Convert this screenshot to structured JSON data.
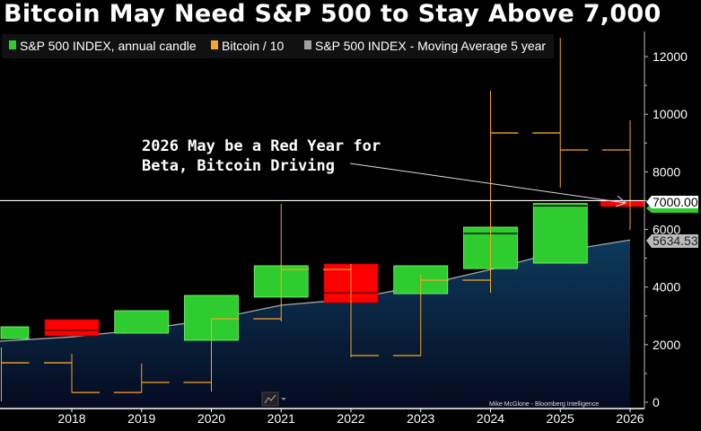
{
  "title": "Bitcoin May Need S&P 500 to Stay Above 7,000",
  "chart_data": {
    "type": "candlestick",
    "title": "Bitcoin May Need S&P 500 to Stay Above 7,000",
    "legend": {
      "placement": "top-left",
      "entries": [
        {
          "label": "S&P 500 INDEX, annual candle",
          "color": "#2ecc2e"
        },
        {
          "label": "Bitcoin / 10",
          "color": "#f5a623"
        },
        {
          "label": "S&P 500 INDEX - Moving Average 5 year",
          "color": "#a0a0a0"
        }
      ]
    },
    "x_tick_labels": [
      "2018",
      "2019",
      "2020",
      "2021",
      "2022",
      "2023",
      "2024",
      "2025",
      "2026"
    ],
    "y_axis": {
      "position": "right",
      "range": [
        0,
        12500
      ],
      "tick_labels": [
        "0",
        "2000",
        "4000",
        "6000",
        "8000",
        "10000",
        "12000"
      ]
    },
    "sp500_candles": [
      {
        "year": 2017,
        "open": 2210,
        "close": 2620
      },
      {
        "year": 2018,
        "open": 2870,
        "close": 2310,
        "marker": 2500
      },
      {
        "year": 2019,
        "open": 2400,
        "close": 3180
      },
      {
        "year": 2020,
        "open": 2150,
        "close": 3710
      },
      {
        "year": 2021,
        "open": 3650,
        "close": 4740
      },
      {
        "year": 2022,
        "open": 4800,
        "close": 3460,
        "marker": 3800
      },
      {
        "year": 2023,
        "open": 3770,
        "close": 4740
      },
      {
        "year": 2024,
        "open": 4640,
        "close": 6080,
        "marker": 5860
      },
      {
        "year": 2025,
        "open": 4830,
        "close": 6900,
        "marker": 6820
      },
      {
        "year": 2026,
        "open": 7000,
        "close": 6800
      }
    ],
    "bitcoin_div10": [
      {
        "year": 2017,
        "high": 1900,
        "low": 30,
        "close": 1370
      },
      {
        "year": 2018,
        "high": 1680,
        "low": 340,
        "open": 1370,
        "close": 340
      },
      {
        "year": 2019,
        "high": 1340,
        "low": 340,
        "open": 340,
        "close": 690
      },
      {
        "year": 2020,
        "high": 2900,
        "low": 370,
        "open": 690,
        "close": 2900
      },
      {
        "year": 2021,
        "high": 6890,
        "low": 2800,
        "open": 2900,
        "close": 4610
      },
      {
        "year": 2022,
        "high": 4800,
        "low": 1560,
        "open": 4610,
        "close": 1620
      },
      {
        "year": 2023,
        "high": 4430,
        "low": 1620,
        "open": 1620,
        "close": 4240
      },
      {
        "year": 2024,
        "high": 10820,
        "low": 3800,
        "open": 4240,
        "close": 9350
      },
      {
        "year": 2025,
        "high": 12650,
        "low": 7450,
        "open": 9350,
        "close": 8760
      },
      {
        "year": 2026,
        "high": 9790,
        "low": 5980,
        "open": 8760
      }
    ],
    "moving_average_5y": {
      "x": [
        2017,
        2018,
        2019,
        2020,
        2021,
        2022,
        2023,
        2024,
        2025,
        2026
      ],
      "y": [
        2120,
        2270,
        2520,
        2870,
        3370,
        3580,
        4050,
        4610,
        5240,
        5634.53
      ]
    },
    "horizontal_line": {
      "value": 7000,
      "label": "7000.00"
    },
    "last_value_label": "5634.53",
    "annotation": [
      "2026 May be a Red Year for",
      "Beta, Bitcoin Driving"
    ],
    "credit": "Mike McGlone - Bloomberg Intelligence",
    "colors": {
      "up": "#2ecc2e",
      "down": "#ff0000",
      "bitcoin": "#f5a623",
      "ma_fill_top": "#0d3a5c",
      "ma_fill_bottom": "#050a20"
    }
  }
}
